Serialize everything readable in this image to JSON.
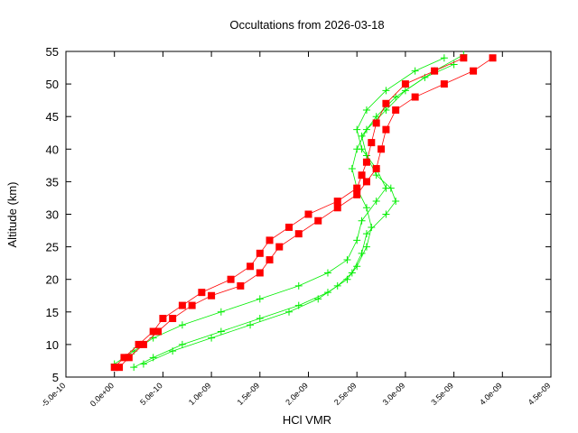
{
  "chart_data": {
    "type": "line",
    "title": "Occultations from 2026-03-18",
    "xlabel": "HCl VMR",
    "ylabel": "Altitude (km)",
    "xlim": [
      -5e-10,
      4.5e-09
    ],
    "ylim": [
      5,
      55
    ],
    "xticks": [
      {
        "value": -5e-10,
        "label": "-5.0e-10"
      },
      {
        "value": 0,
        "label": "0.0e+00"
      },
      {
        "value": 5e-10,
        "label": "5.0e-10"
      },
      {
        "value": 1e-09,
        "label": "1.0e-09"
      },
      {
        "value": 1.5e-09,
        "label": "1.5e-09"
      },
      {
        "value": 2e-09,
        "label": "2.0e-09"
      },
      {
        "value": 2.5e-09,
        "label": "2.5e-09"
      },
      {
        "value": 3e-09,
        "label": "3.0e-09"
      },
      {
        "value": 3.5e-09,
        "label": "3.5e-09"
      },
      {
        "value": 4e-09,
        "label": "4.0e-09"
      },
      {
        "value": 4.5e-09,
        "label": "4.5e-09"
      }
    ],
    "yticks": [
      5,
      10,
      15,
      20,
      25,
      30,
      35,
      40,
      45,
      50,
      55
    ],
    "series": [
      {
        "color": "#00ee00",
        "marker": "plus",
        "x": [
          2e-10,
          4e-10,
          7e-10,
          1.1e-09,
          1.5e-09,
          1.9e-09,
          2.2e-09,
          2.4e-09,
          2.5e-09,
          2.6e-09,
          2.65e-09,
          2.6e-09,
          2.5e-09,
          2.45e-09,
          2.5e-09,
          2.6e-09,
          2.8e-09,
          3e-09,
          3.3e-09,
          3.6e-09
        ],
        "values": [
          6.5,
          8,
          10,
          12,
          14,
          16,
          18,
          20,
          22,
          25,
          28,
          31,
          34,
          37,
          40,
          43,
          46,
          49,
          52,
          54.5
        ]
      },
      {
        "color": "#00ee00",
        "marker": "plus",
        "x": [
          0,
          2e-10,
          4e-10,
          7e-10,
          1.1e-09,
          1.5e-09,
          1.9e-09,
          2.2e-09,
          2.4e-09,
          2.5e-09,
          2.55e-09,
          2.7e-09,
          2.8e-09,
          2.7e-09,
          2.55e-09,
          2.5e-09,
          2.6e-09,
          2.8e-09,
          3.1e-09,
          3.4e-09
        ],
        "values": [
          7,
          9,
          11,
          13,
          15,
          17,
          19,
          21,
          23,
          26,
          29,
          32,
          34,
          37,
          40,
          43,
          46,
          49,
          52,
          54
        ]
      },
      {
        "color": "#00ee00",
        "marker": "plus",
        "x": [
          3e-10,
          6e-10,
          1e-09,
          1.4e-09,
          1.8e-09,
          2.1e-09,
          2.3e-09,
          2.45e-09,
          2.55e-09,
          2.6e-09,
          2.8e-09,
          2.9e-09,
          2.85e-09,
          2.7e-09,
          2.6e-09,
          2.55e-09,
          2.7e-09,
          2.9e-09,
          3.2e-09,
          3.5e-09
        ],
        "values": [
          7,
          9,
          11,
          13,
          15,
          17,
          19,
          21,
          24,
          27,
          30,
          32,
          34,
          36,
          39,
          42,
          45,
          48,
          51,
          53
        ]
      },
      {
        "color": "#ff0000",
        "marker": "square",
        "x": [
          5e-11,
          1.5e-10,
          3e-10,
          4.5e-10,
          6e-10,
          8e-10,
          1e-09,
          1.3e-09,
          1.5e-09,
          1.6e-09,
          1.7e-09,
          1.9e-09,
          2.1e-09,
          2.3e-09,
          2.5e-09,
          2.6e-09,
          2.7e-09,
          2.75e-09,
          2.8e-09,
          2.9e-09,
          3.1e-09,
          3.4e-09,
          3.7e-09,
          3.9e-09
        ],
        "values": [
          6.5,
          8,
          10,
          12,
          14,
          16,
          17.5,
          19,
          21,
          23,
          25,
          27,
          29,
          31,
          33,
          35,
          37,
          40,
          43,
          46,
          48,
          50,
          52,
          54
        ]
      },
      {
        "color": "#ff0000",
        "marker": "square",
        "x": [
          0,
          1e-10,
          2.5e-10,
          4e-10,
          5e-10,
          7e-10,
          9e-10,
          1.2e-09,
          1.4e-09,
          1.5e-09,
          1.6e-09,
          1.8e-09,
          2e-09,
          2.3e-09,
          2.5e-09,
          2.55e-09,
          2.6e-09,
          2.65e-09,
          2.7e-09,
          2.8e-09,
          3e-09,
          3.3e-09,
          3.6e-09
        ],
        "values": [
          6.5,
          8,
          10,
          12,
          14,
          16,
          18,
          20,
          22,
          24,
          26,
          28,
          30,
          32,
          34,
          36,
          38,
          41,
          44,
          47,
          50,
          52,
          54
        ]
      }
    ]
  }
}
